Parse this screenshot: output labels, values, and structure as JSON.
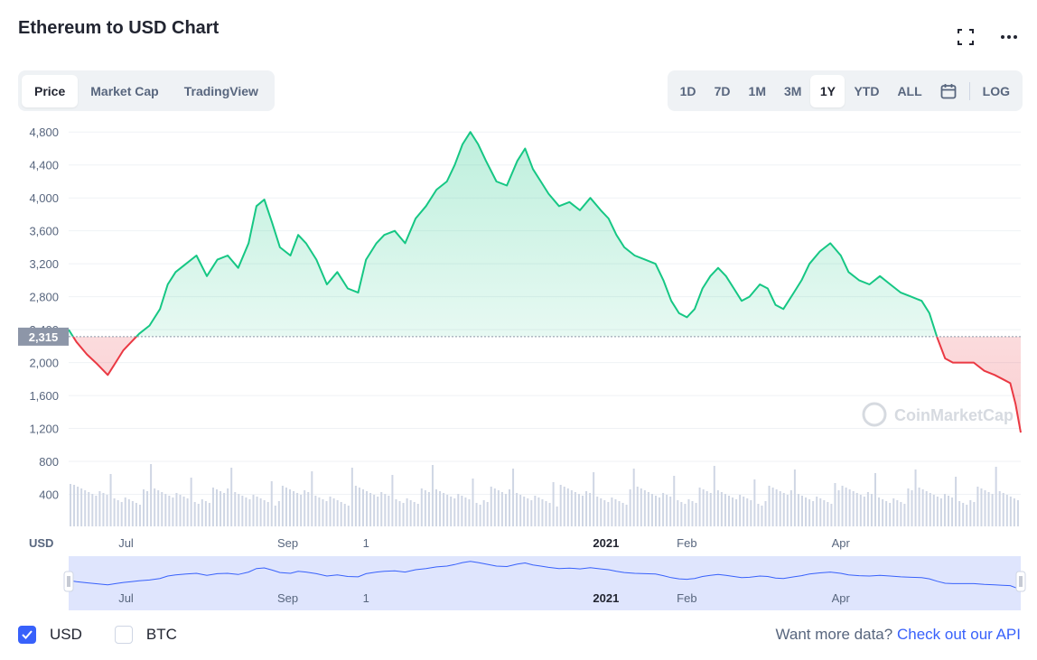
{
  "header": {
    "title": "Ethereum to USD Chart"
  },
  "icons": {
    "fullscreen": "fullscreen-icon",
    "more": "more-horizontal-icon",
    "calendar": "calendar-icon"
  },
  "tabs": [
    {
      "label": "Price",
      "active": true
    },
    {
      "label": "Market Cap",
      "active": false
    },
    {
      "label": "TradingView",
      "active": false
    }
  ],
  "ranges": [
    {
      "label": "1D",
      "active": false
    },
    {
      "label": "7D",
      "active": false
    },
    {
      "label": "1M",
      "active": false
    },
    {
      "label": "3M",
      "active": false
    },
    {
      "label": "1Y",
      "active": true
    },
    {
      "label": "YTD",
      "active": false
    },
    {
      "label": "ALL",
      "active": false
    }
  ],
  "log_label": "LOG",
  "currency_options": [
    {
      "label": "USD",
      "checked": true
    },
    {
      "label": "BTC",
      "checked": false
    }
  ],
  "footer": {
    "prompt": "Want more data?",
    "link": "Check out our API"
  },
  "colors": {
    "up": "#16c784",
    "down": "#ea3943",
    "accent": "#3861fb",
    "volume": "#cfd6e4",
    "navigator_fill": "#dfe5fd"
  },
  "chart_data": {
    "type": "area",
    "title": "Ethereum to USD Chart",
    "ylabel": "USD",
    "ylim": [
      0,
      5000
    ],
    "yticks": [
      400,
      800,
      1200,
      1600,
      2000,
      2400,
      2800,
      3200,
      3600,
      4000,
      4400,
      4800
    ],
    "ytick_labels": [
      "400",
      "800",
      "1,200",
      "1,600",
      "2,000",
      "2,400",
      "2,800",
      "3,200",
      "3,600",
      "4,000",
      "4,400",
      "4,800"
    ],
    "xticks": [
      {
        "label": "Jul",
        "date": "2021-07-01",
        "bold": false
      },
      {
        "label": "Sep",
        "date": "2021-09-01",
        "bold": false
      },
      {
        "label": "1",
        "date": "2021-10-01",
        "bold": false
      },
      {
        "label": "2021",
        "date": "2022-01-01",
        "bold": true
      },
      {
        "label": "Feb",
        "date": "2022-02-01",
        "bold": false
      },
      {
        "label": "Apr",
        "date": "2022-04-01",
        "bold": false
      }
    ],
    "x_range": [
      "2021-06-09",
      "2022-06-09"
    ],
    "reference": {
      "value": 2315,
      "label": "2,315"
    },
    "watermark": "CoinMarketCap",
    "series": [
      {
        "points": [
          [
            "2021-06-09",
            2400
          ],
          [
            "2021-06-12",
            2250
          ],
          [
            "2021-06-16",
            2100
          ],
          [
            "2021-06-20",
            1980
          ],
          [
            "2021-06-24",
            1850
          ],
          [
            "2021-06-27",
            2000
          ],
          [
            "2021-06-30",
            2150
          ],
          [
            "2021-07-03",
            2250
          ],
          [
            "2021-07-06",
            2350
          ],
          [
            "2021-07-10",
            2450
          ],
          [
            "2021-07-14",
            2650
          ],
          [
            "2021-07-17",
            2950
          ],
          [
            "2021-07-20",
            3100
          ],
          [
            "2021-07-24",
            3200
          ],
          [
            "2021-07-28",
            3300
          ],
          [
            "2021-08-01",
            3050
          ],
          [
            "2021-08-05",
            3250
          ],
          [
            "2021-08-09",
            3300
          ],
          [
            "2021-08-13",
            3150
          ],
          [
            "2021-08-17",
            3450
          ],
          [
            "2021-08-20",
            3900
          ],
          [
            "2021-08-23",
            3980
          ],
          [
            "2021-08-26",
            3700
          ],
          [
            "2021-08-29",
            3400
          ],
          [
            "2021-09-02",
            3300
          ],
          [
            "2021-09-05",
            3550
          ],
          [
            "2021-09-08",
            3450
          ],
          [
            "2021-09-12",
            3250
          ],
          [
            "2021-09-16",
            2950
          ],
          [
            "2021-09-20",
            3100
          ],
          [
            "2021-09-24",
            2900
          ],
          [
            "2021-09-28",
            2850
          ],
          [
            "2021-10-01",
            3250
          ],
          [
            "2021-10-05",
            3450
          ],
          [
            "2021-10-08",
            3550
          ],
          [
            "2021-10-12",
            3600
          ],
          [
            "2021-10-16",
            3450
          ],
          [
            "2021-10-20",
            3750
          ],
          [
            "2021-10-24",
            3900
          ],
          [
            "2021-10-28",
            4100
          ],
          [
            "2021-11-01",
            4200
          ],
          [
            "2021-11-04",
            4400
          ],
          [
            "2021-11-07",
            4650
          ],
          [
            "2021-11-10",
            4800
          ],
          [
            "2021-11-13",
            4650
          ],
          [
            "2021-11-16",
            4450
          ],
          [
            "2021-11-20",
            4200
          ],
          [
            "2021-11-24",
            4150
          ],
          [
            "2021-11-28",
            4450
          ],
          [
            "2021-12-01",
            4600
          ],
          [
            "2021-12-04",
            4350
          ],
          [
            "2021-12-07",
            4200
          ],
          [
            "2021-12-10",
            4050
          ],
          [
            "2021-12-14",
            3900
          ],
          [
            "2021-12-18",
            3950
          ],
          [
            "2021-12-22",
            3850
          ],
          [
            "2021-12-26",
            4000
          ],
          [
            "2021-12-30",
            3850
          ],
          [
            "2022-01-02",
            3750
          ],
          [
            "2022-01-05",
            3550
          ],
          [
            "2022-01-08",
            3400
          ],
          [
            "2022-01-12",
            3300
          ],
          [
            "2022-01-16",
            3250
          ],
          [
            "2022-01-20",
            3200
          ],
          [
            "2022-01-23",
            3000
          ],
          [
            "2022-01-26",
            2750
          ],
          [
            "2022-01-29",
            2600
          ],
          [
            "2022-02-01",
            2550
          ],
          [
            "2022-02-04",
            2650
          ],
          [
            "2022-02-07",
            2900
          ],
          [
            "2022-02-10",
            3050
          ],
          [
            "2022-02-13",
            3150
          ],
          [
            "2022-02-16",
            3050
          ],
          [
            "2022-02-19",
            2900
          ],
          [
            "2022-02-22",
            2750
          ],
          [
            "2022-02-25",
            2800
          ],
          [
            "2022-03-01",
            2950
          ],
          [
            "2022-03-04",
            2900
          ],
          [
            "2022-03-07",
            2700
          ],
          [
            "2022-03-10",
            2650
          ],
          [
            "2022-03-14",
            2850
          ],
          [
            "2022-03-17",
            3000
          ],
          [
            "2022-03-20",
            3200
          ],
          [
            "2022-03-24",
            3350
          ],
          [
            "2022-03-28",
            3450
          ],
          [
            "2022-04-01",
            3300
          ],
          [
            "2022-04-04",
            3100
          ],
          [
            "2022-04-08",
            3000
          ],
          [
            "2022-04-12",
            2950
          ],
          [
            "2022-04-16",
            3050
          ],
          [
            "2022-04-20",
            2950
          ],
          [
            "2022-04-24",
            2850
          ],
          [
            "2022-04-28",
            2800
          ],
          [
            "2022-05-02",
            2750
          ],
          [
            "2022-05-05",
            2600
          ],
          [
            "2022-05-08",
            2300
          ],
          [
            "2022-05-11",
            2050
          ],
          [
            "2022-05-14",
            2000
          ],
          [
            "2022-05-18",
            2000
          ],
          [
            "2022-05-22",
            2000
          ],
          [
            "2022-05-26",
            1900
          ],
          [
            "2022-05-30",
            1850
          ],
          [
            "2022-06-02",
            1800
          ],
          [
            "2022-06-05",
            1750
          ],
          [
            "2022-06-07",
            1500
          ],
          [
            "2022-06-09",
            1150
          ]
        ]
      }
    ]
  }
}
